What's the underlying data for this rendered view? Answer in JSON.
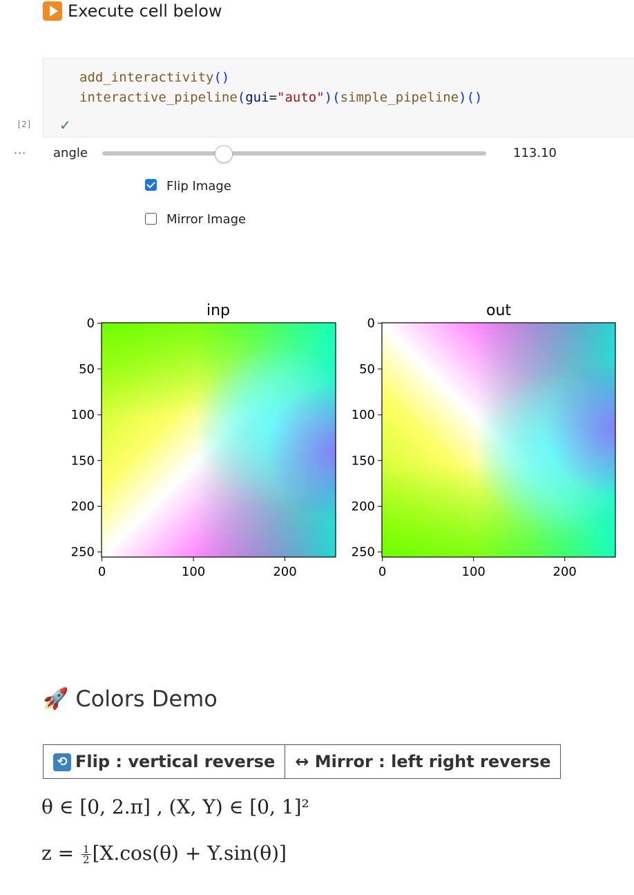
{
  "markdown_top": {
    "text": "Execute cell below",
    "icon": "play-button-icon"
  },
  "code_cell": {
    "execution_count": "[2]",
    "status_icon": "check-icon",
    "line1": {
      "fn": "add_interactivity",
      "open": "(",
      "close": ")"
    },
    "line2": {
      "fn": "interactive_pipeline",
      "open1": "(",
      "kwarg": "gui",
      "eq": "=",
      "string": "\"auto\"",
      "close1": ")",
      "open2": "(",
      "arg": "simple_pipeline",
      "close2": ")",
      "call": "()"
    }
  },
  "output": {
    "menu_icon": "ellipsis-icon",
    "slider": {
      "label": "angle",
      "value": "113.10",
      "fraction": 0.29
    },
    "checkboxes": [
      {
        "label": "Flip Image",
        "checked": true
      },
      {
        "label": "Mirror Image",
        "checked": false
      }
    ]
  },
  "plots": [
    {
      "title": "inp",
      "yticks": [
        "0",
        "50",
        "100",
        "150",
        "200",
        "250"
      ],
      "xticks": [
        "0",
        "100",
        "200"
      ]
    },
    {
      "title": "out",
      "yticks": [
        "0",
        "50",
        "100",
        "150",
        "200",
        "250"
      ],
      "xticks": [
        "0",
        "100",
        "200"
      ]
    }
  ],
  "colors_demo": {
    "icon": "rocket-icon",
    "title": "Colors Demo",
    "table": {
      "flip_icon": "flip-icon",
      "flip": "Flip : vertical reverse",
      "mirror_symbol": "↔",
      "mirror": "Mirror : left right reverse"
    },
    "formula1": "θ ∈ [0, 2.π] , (X, Y) ∈ [0, 1]²",
    "formula2": {
      "lhs": "z =",
      "num": "1",
      "den": "2",
      "rhs": "[X.cos(θ) + Y.sin(θ)]"
    }
  }
}
